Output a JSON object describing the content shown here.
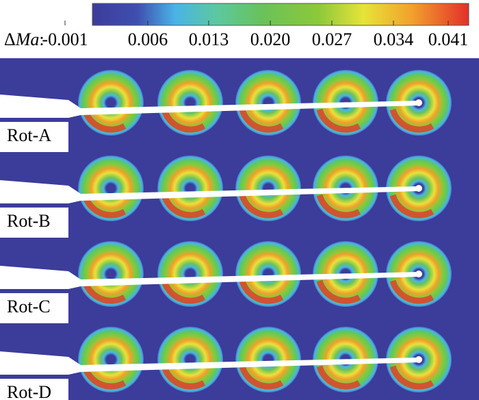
{
  "colorbar": {
    "label": {
      "prefix": "Δ",
      "variable": "Ma",
      "suffix": ":"
    },
    "ticks": [
      "-0.001",
      "0.006",
      "0.013",
      "0.020",
      "0.027",
      "0.034",
      "0.041"
    ]
  },
  "rows": [
    {
      "label": "Rot-A"
    },
    {
      "label": "Rot-B"
    },
    {
      "label": "Rot-C"
    },
    {
      "label": "Rot-D"
    }
  ]
}
